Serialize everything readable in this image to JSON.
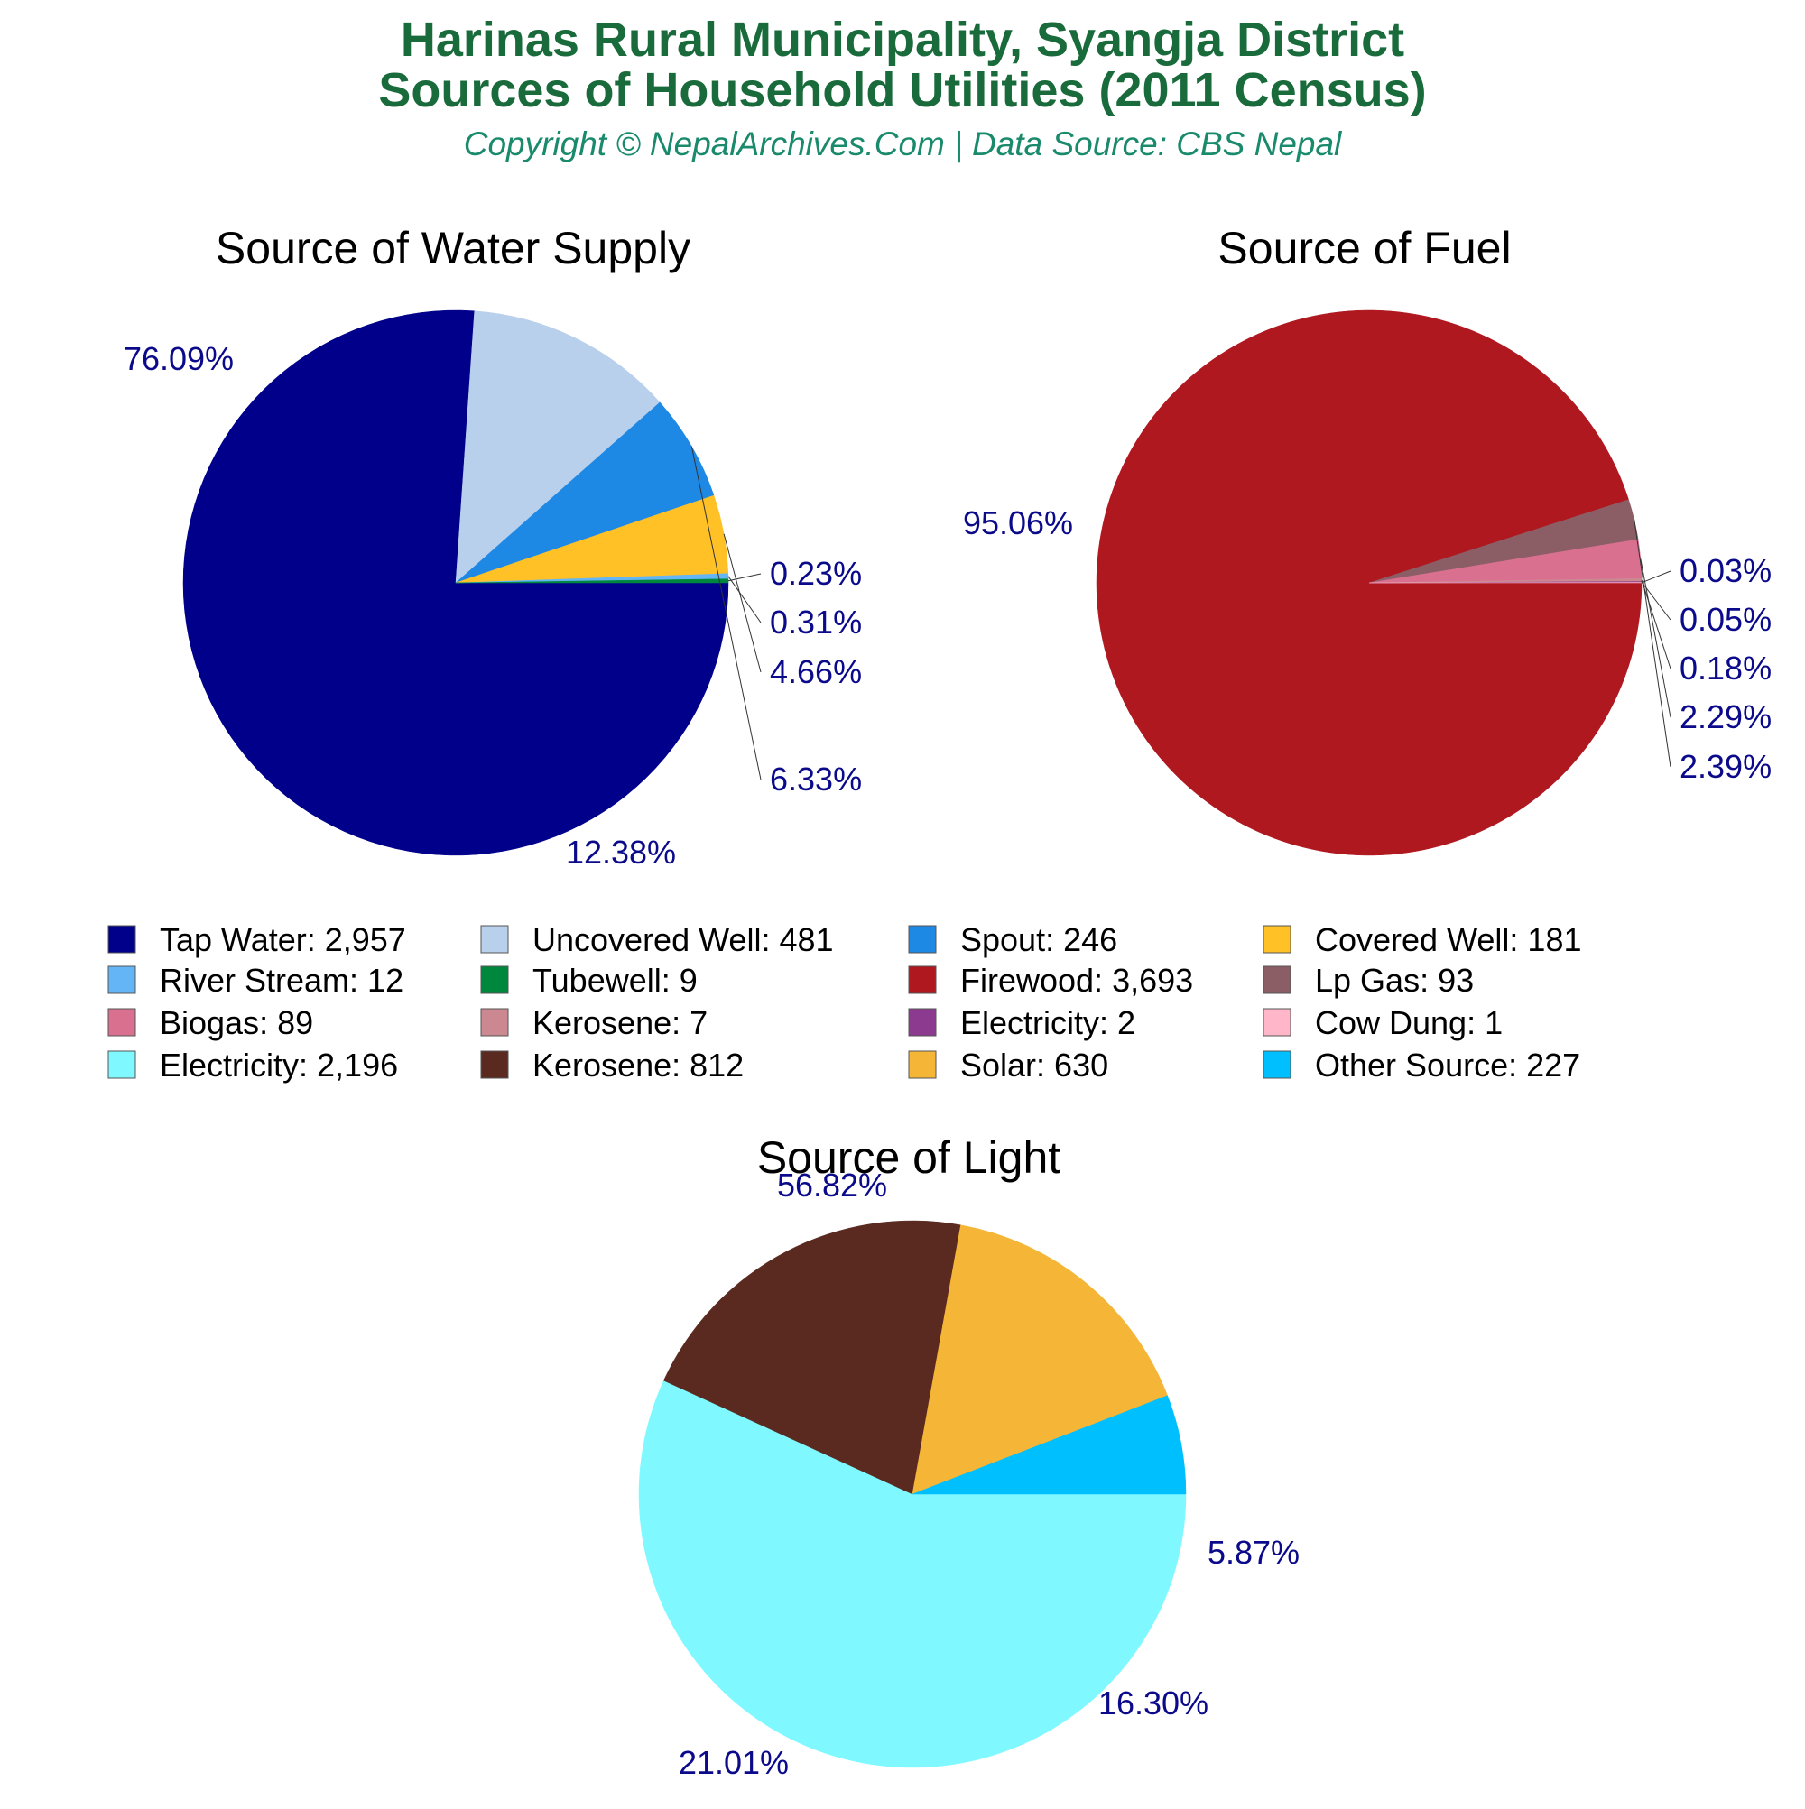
{
  "header": {
    "title_line1": "Harinas Rural Municipality, Syangja District",
    "title_line2": "Sources of Household Utilities (2011 Census)",
    "subtitle": "Copyright © NepalArchives.Com | Data Source: CBS Nepal"
  },
  "chart_data": [
    {
      "type": "pie",
      "title": "Source of Water Supply",
      "slices": [
        {
          "name": "Tap Water",
          "value": 2957,
          "label": "76.09%",
          "color": "#00008b"
        },
        {
          "name": "Uncovered Well",
          "value": 481,
          "label": "12.38%",
          "color": "#b8d0ec"
        },
        {
          "name": "Spout",
          "value": 246,
          "label": "6.33%",
          "color": "#1e88e5"
        },
        {
          "name": "Covered Well",
          "value": 181,
          "label": "4.66%",
          "color": "#ffc125"
        },
        {
          "name": "River Stream",
          "value": 12,
          "label": "0.31%",
          "color": "#64b5f6"
        },
        {
          "name": "Tubewell",
          "value": 9,
          "label": "0.23%",
          "color": "#00873e"
        }
      ]
    },
    {
      "type": "pie",
      "title": "Source of Fuel",
      "slices": [
        {
          "name": "Firewood",
          "value": 3693,
          "label": "95.06%",
          "color": "#b01820"
        },
        {
          "name": "Lp Gas",
          "value": 93,
          "label": "2.39%",
          "color": "#8b5e66"
        },
        {
          "name": "Biogas",
          "value": 89,
          "label": "2.29%",
          "color": "#d9708f"
        },
        {
          "name": "Kerosene",
          "value": 7,
          "label": "0.18%",
          "color": "#cc8890"
        },
        {
          "name": "Electricity",
          "value": 2,
          "label": "0.05%",
          "color": "#8b3a8f"
        },
        {
          "name": "Cow Dung",
          "value": 1,
          "label": "0.03%",
          "color": "#ffb6c8"
        }
      ]
    },
    {
      "type": "pie",
      "title": "Source of Light",
      "slices": [
        {
          "name": "Electricity",
          "value": 2196,
          "label": "56.82%",
          "color": "#7ff9ff"
        },
        {
          "name": "Kerosene",
          "value": 812,
          "label": "21.01%",
          "color": "#5a2a20"
        },
        {
          "name": "Solar",
          "value": 630,
          "label": "16.30%",
          "color": "#f5b638"
        },
        {
          "name": "Other Source",
          "value": 227,
          "label": "5.87%",
          "color": "#00bfff"
        }
      ]
    }
  ],
  "legend": [
    {
      "text": "Tap Water: 2,957",
      "color": "#00008b"
    },
    {
      "text": "Uncovered Well: 481",
      "color": "#b8d0ec"
    },
    {
      "text": "Spout: 246",
      "color": "#1e88e5"
    },
    {
      "text": "Covered Well: 181",
      "color": "#ffc125"
    },
    {
      "text": "River Stream: 12",
      "color": "#64b5f6"
    },
    {
      "text": "Tubewell: 9",
      "color": "#00873e"
    },
    {
      "text": "Firewood: 3,693",
      "color": "#b01820"
    },
    {
      "text": "Lp Gas: 93",
      "color": "#8b5e66"
    },
    {
      "text": "Biogas: 89",
      "color": "#d9708f"
    },
    {
      "text": "Kerosene: 7",
      "color": "#cc8890"
    },
    {
      "text": "Electricity: 2",
      "color": "#8b3a8f"
    },
    {
      "text": "Cow Dung: 1",
      "color": "#ffb6c8"
    },
    {
      "text": "Electricity: 2,196",
      "color": "#7ff9ff"
    },
    {
      "text": "Kerosene: 812",
      "color": "#5a2a20"
    },
    {
      "text": "Solar: 630",
      "color": "#f5b638"
    },
    {
      "text": "Other Source: 227",
      "color": "#00bfff"
    }
  ]
}
